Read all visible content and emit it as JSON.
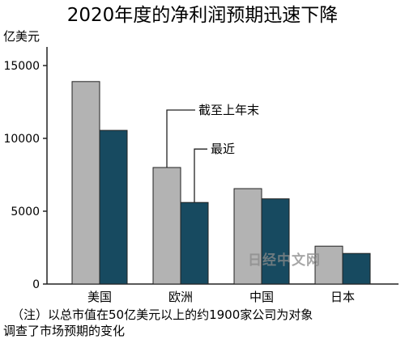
{
  "chart_data": {
    "type": "bar",
    "title": "2020年度的净利润预期迅速下降",
    "ylabel": "亿美元",
    "ylim": [
      0,
      16000
    ],
    "yticks": [
      0,
      5000,
      10000,
      15000
    ],
    "ytick_labels": [
      "0",
      "5000",
      "10000",
      "15000"
    ],
    "categories": [
      "美国",
      "欧洲",
      "中国",
      "日本"
    ],
    "series": [
      {
        "name": "截至上年末",
        "color": "#b3b3b3",
        "values": [
          13900,
          8000,
          6550,
          2600
        ]
      },
      {
        "name": "最近",
        "color": "#174a60",
        "values": [
          10550,
          5600,
          5850,
          2100
        ]
      }
    ],
    "grid": false,
    "legend": "callouts"
  },
  "note": {
    "line1": "（注）以总市值在50亿美元以上的约1900家公司为对象",
    "line2": "调查了市场预期的变化"
  },
  "watermark": "日经中文网",
  "colors": {
    "axis": "#222222",
    "bar_edge": "#222222"
  }
}
